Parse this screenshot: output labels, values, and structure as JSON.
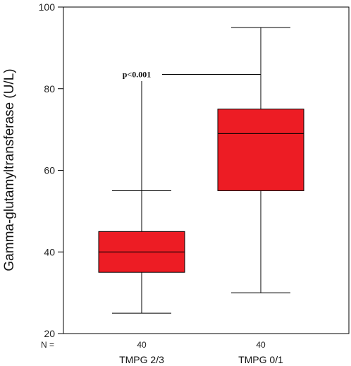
{
  "chart_data": {
    "type": "boxplot",
    "ylabel": "Gamma-glutamyltransferase (U/L)",
    "ylim": [
      20,
      100
    ],
    "yticks": [
      20,
      40,
      60,
      80,
      100
    ],
    "categories": [
      "TMPG 2/3",
      "TMPG 0/1"
    ],
    "n_label": "N =",
    "n_values": [
      "40",
      "40"
    ],
    "boxes": [
      {
        "category": "TMPG 2/3",
        "min": 25,
        "q1": 35,
        "median": 40,
        "q3": 45,
        "max": 55
      },
      {
        "category": "TMPG 0/1",
        "min": 30,
        "q1": 55,
        "median": 69,
        "q3": 75,
        "max": 95
      }
    ],
    "annotation": {
      "text": "p<0.001",
      "y": 83.5
    },
    "box_color": "#ed1c24",
    "grid": false
  }
}
